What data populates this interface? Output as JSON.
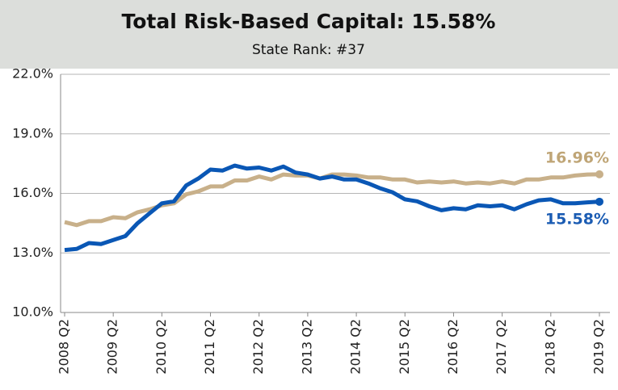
{
  "chart_data": {
    "type": "line",
    "title": "Total Risk-Based Capital: 15.58%",
    "subtitle": "State Rank: #37",
    "categories": [
      "2008 Q2",
      null,
      null,
      null,
      "2009 Q2",
      null,
      null,
      null,
      "2010 Q2",
      null,
      null,
      null,
      "2011 Q2",
      null,
      null,
      null,
      "2012 Q2",
      null,
      null,
      null,
      "2013 Q2",
      null,
      null,
      null,
      "2014 Q2",
      null,
      null,
      null,
      "2015 Q2",
      null,
      null,
      null,
      "2016 Q2",
      null,
      null,
      null,
      "2017 Q2",
      null,
      null,
      null,
      "2018 Q2",
      null,
      null,
      null,
      "2019 Q2"
    ],
    "series": [
      {
        "color": "#c8b08a",
        "label_color": "#bfa576",
        "values": [
          14.55,
          14.4,
          14.6,
          14.6,
          14.8,
          14.75,
          15.05,
          15.2,
          15.4,
          15.5,
          15.95,
          16.1,
          16.35,
          16.35,
          16.65,
          16.65,
          16.85,
          16.7,
          16.95,
          16.9,
          16.9,
          16.75,
          16.95,
          16.95,
          16.9,
          16.8,
          16.8,
          16.7,
          16.7,
          16.55,
          16.6,
          16.55,
          16.6,
          16.5,
          16.55,
          16.5,
          16.6,
          16.5,
          16.7,
          16.7,
          16.8,
          16.8,
          16.9,
          16.95,
          16.96
        ],
        "value_labels": [
          null,
          null,
          null,
          null,
          null,
          null,
          null,
          null,
          null,
          null,
          null,
          null,
          null,
          null,
          null,
          null,
          null,
          null,
          null,
          null,
          null,
          null,
          null,
          null,
          null,
          null,
          null,
          null,
          null,
          null,
          null,
          null,
          null,
          null,
          null,
          null,
          null,
          null,
          null,
          null,
          null,
          null,
          null,
          null,
          "16.96%"
        ]
      },
      {
        "color": "#0a57b5",
        "label_color": "#1b5cb3",
        "values": [
          13.15,
          13.2,
          13.5,
          13.45,
          13.65,
          13.85,
          14.5,
          15.0,
          15.5,
          15.6,
          16.4,
          16.75,
          17.2,
          17.15,
          17.4,
          17.25,
          17.3,
          17.15,
          17.35,
          17.05,
          16.95,
          16.75,
          16.85,
          16.7,
          16.7,
          16.5,
          16.25,
          16.05,
          15.7,
          15.6,
          15.35,
          15.15,
          15.25,
          15.2,
          15.4,
          15.35,
          15.4,
          15.2,
          15.45,
          15.65,
          15.7,
          15.5,
          15.5,
          15.55,
          15.58
        ],
        "value_labels": [
          null,
          null,
          null,
          null,
          null,
          null,
          null,
          null,
          null,
          null,
          null,
          null,
          null,
          null,
          null,
          null,
          null,
          null,
          null,
          null,
          null,
          null,
          null,
          null,
          null,
          null,
          null,
          null,
          null,
          null,
          null,
          null,
          null,
          null,
          null,
          null,
          null,
          null,
          null,
          null,
          null,
          null,
          null,
          null,
          "15.58%"
        ]
      }
    ],
    "ylim": [
      10,
      22
    ],
    "yticks": [
      {
        "value": 10,
        "label": "10.0%"
      },
      {
        "value": 13,
        "label": "13.0%"
      },
      {
        "value": 16,
        "label": "16.0%"
      },
      {
        "value": 19,
        "label": "19.0%"
      },
      {
        "value": 22,
        "label": "22.0%"
      }
    ],
    "grid": true
  }
}
